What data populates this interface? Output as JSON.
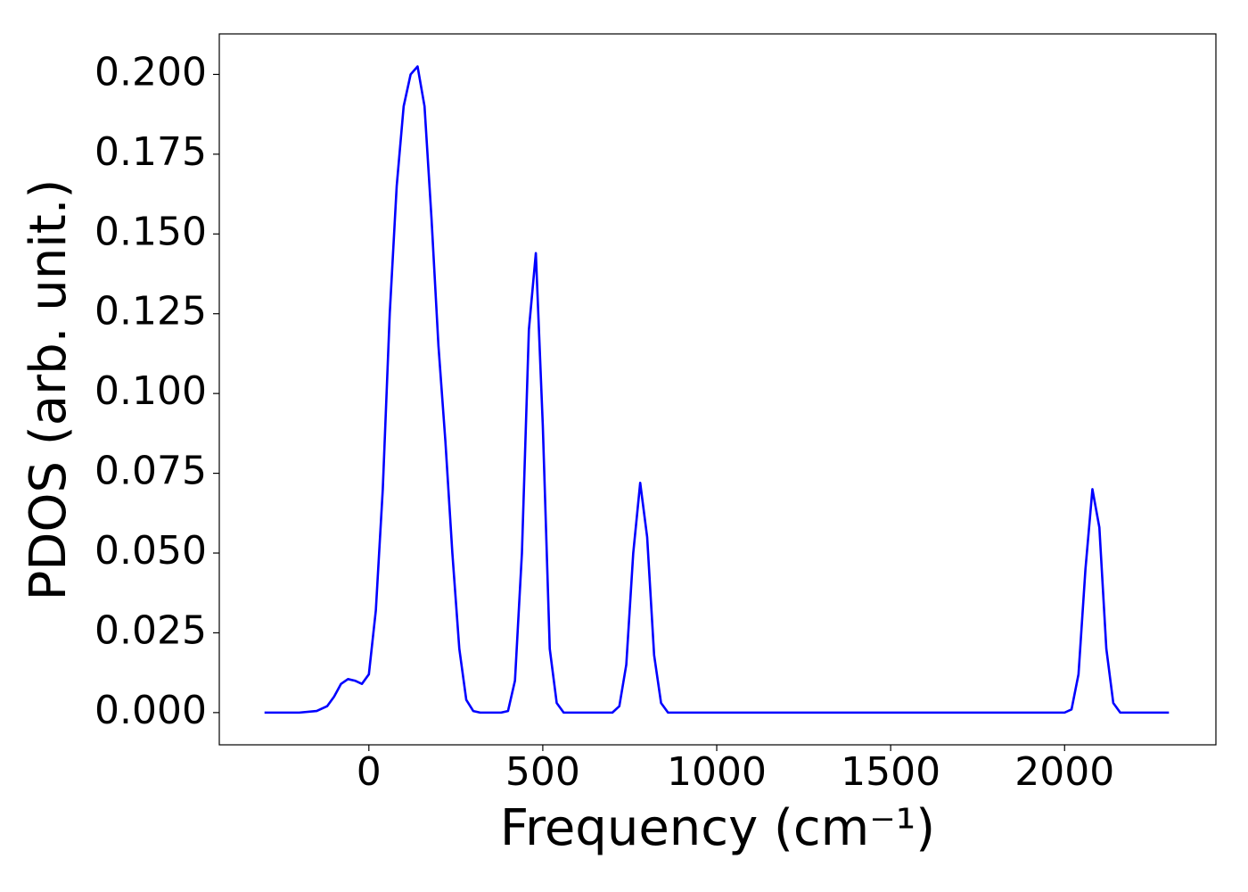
{
  "chart_data": {
    "type": "line",
    "xlabel": "Frequency (cm⁻¹)",
    "ylabel": "PDOS (arb. unit.)",
    "x": [
      -300,
      -200,
      -150,
      -120,
      -100,
      -80,
      -60,
      -40,
      -20,
      0,
      20,
      40,
      60,
      80,
      100,
      120,
      140,
      160,
      180,
      200,
      220,
      240,
      260,
      280,
      300,
      320,
      380,
      400,
      420,
      440,
      460,
      480,
      500,
      520,
      540,
      560,
      600,
      700,
      720,
      740,
      760,
      780,
      800,
      820,
      840,
      860,
      900,
      2000,
      2020,
      2040,
      2060,
      2080,
      2100,
      2120,
      2140,
      2160,
      2200,
      2300
    ],
    "series": [
      {
        "color": "#0000ff",
        "values": [
          0,
          0,
          0.0005,
          0.002,
          0.005,
          0.009,
          0.0105,
          0.01,
          0.009,
          0.012,
          0.032,
          0.07,
          0.125,
          0.165,
          0.19,
          0.2,
          0.2025,
          0.19,
          0.155,
          0.115,
          0.085,
          0.05,
          0.02,
          0.004,
          0.0005,
          0,
          0,
          0.0005,
          0.01,
          0.05,
          0.12,
          0.144,
          0.09,
          0.02,
          0.003,
          0,
          0,
          0,
          0.002,
          0.015,
          0.05,
          0.072,
          0.055,
          0.018,
          0.003,
          0,
          0,
          0,
          0.001,
          0.012,
          0.045,
          0.07,
          0.058,
          0.02,
          0.003,
          0,
          0,
          0
        ]
      }
    ],
    "xlim": [
      -430,
      2435
    ],
    "ylim": [
      -0.0101,
      0.2127
    ],
    "xticks": [
      0,
      500,
      1000,
      1500,
      2000
    ],
    "yticks": [
      {
        "value": 0,
        "label": "0.000"
      },
      0.025,
      {
        "value": 0.05,
        "label": "0.050"
      },
      0.075,
      {
        "value": 0.1,
        "label": "0.100"
      },
      0.125,
      {
        "value": 0.15,
        "label": "0.150"
      },
      0.175,
      {
        "value": 0.2,
        "label": "0.200"
      }
    ],
    "grid": false
  }
}
